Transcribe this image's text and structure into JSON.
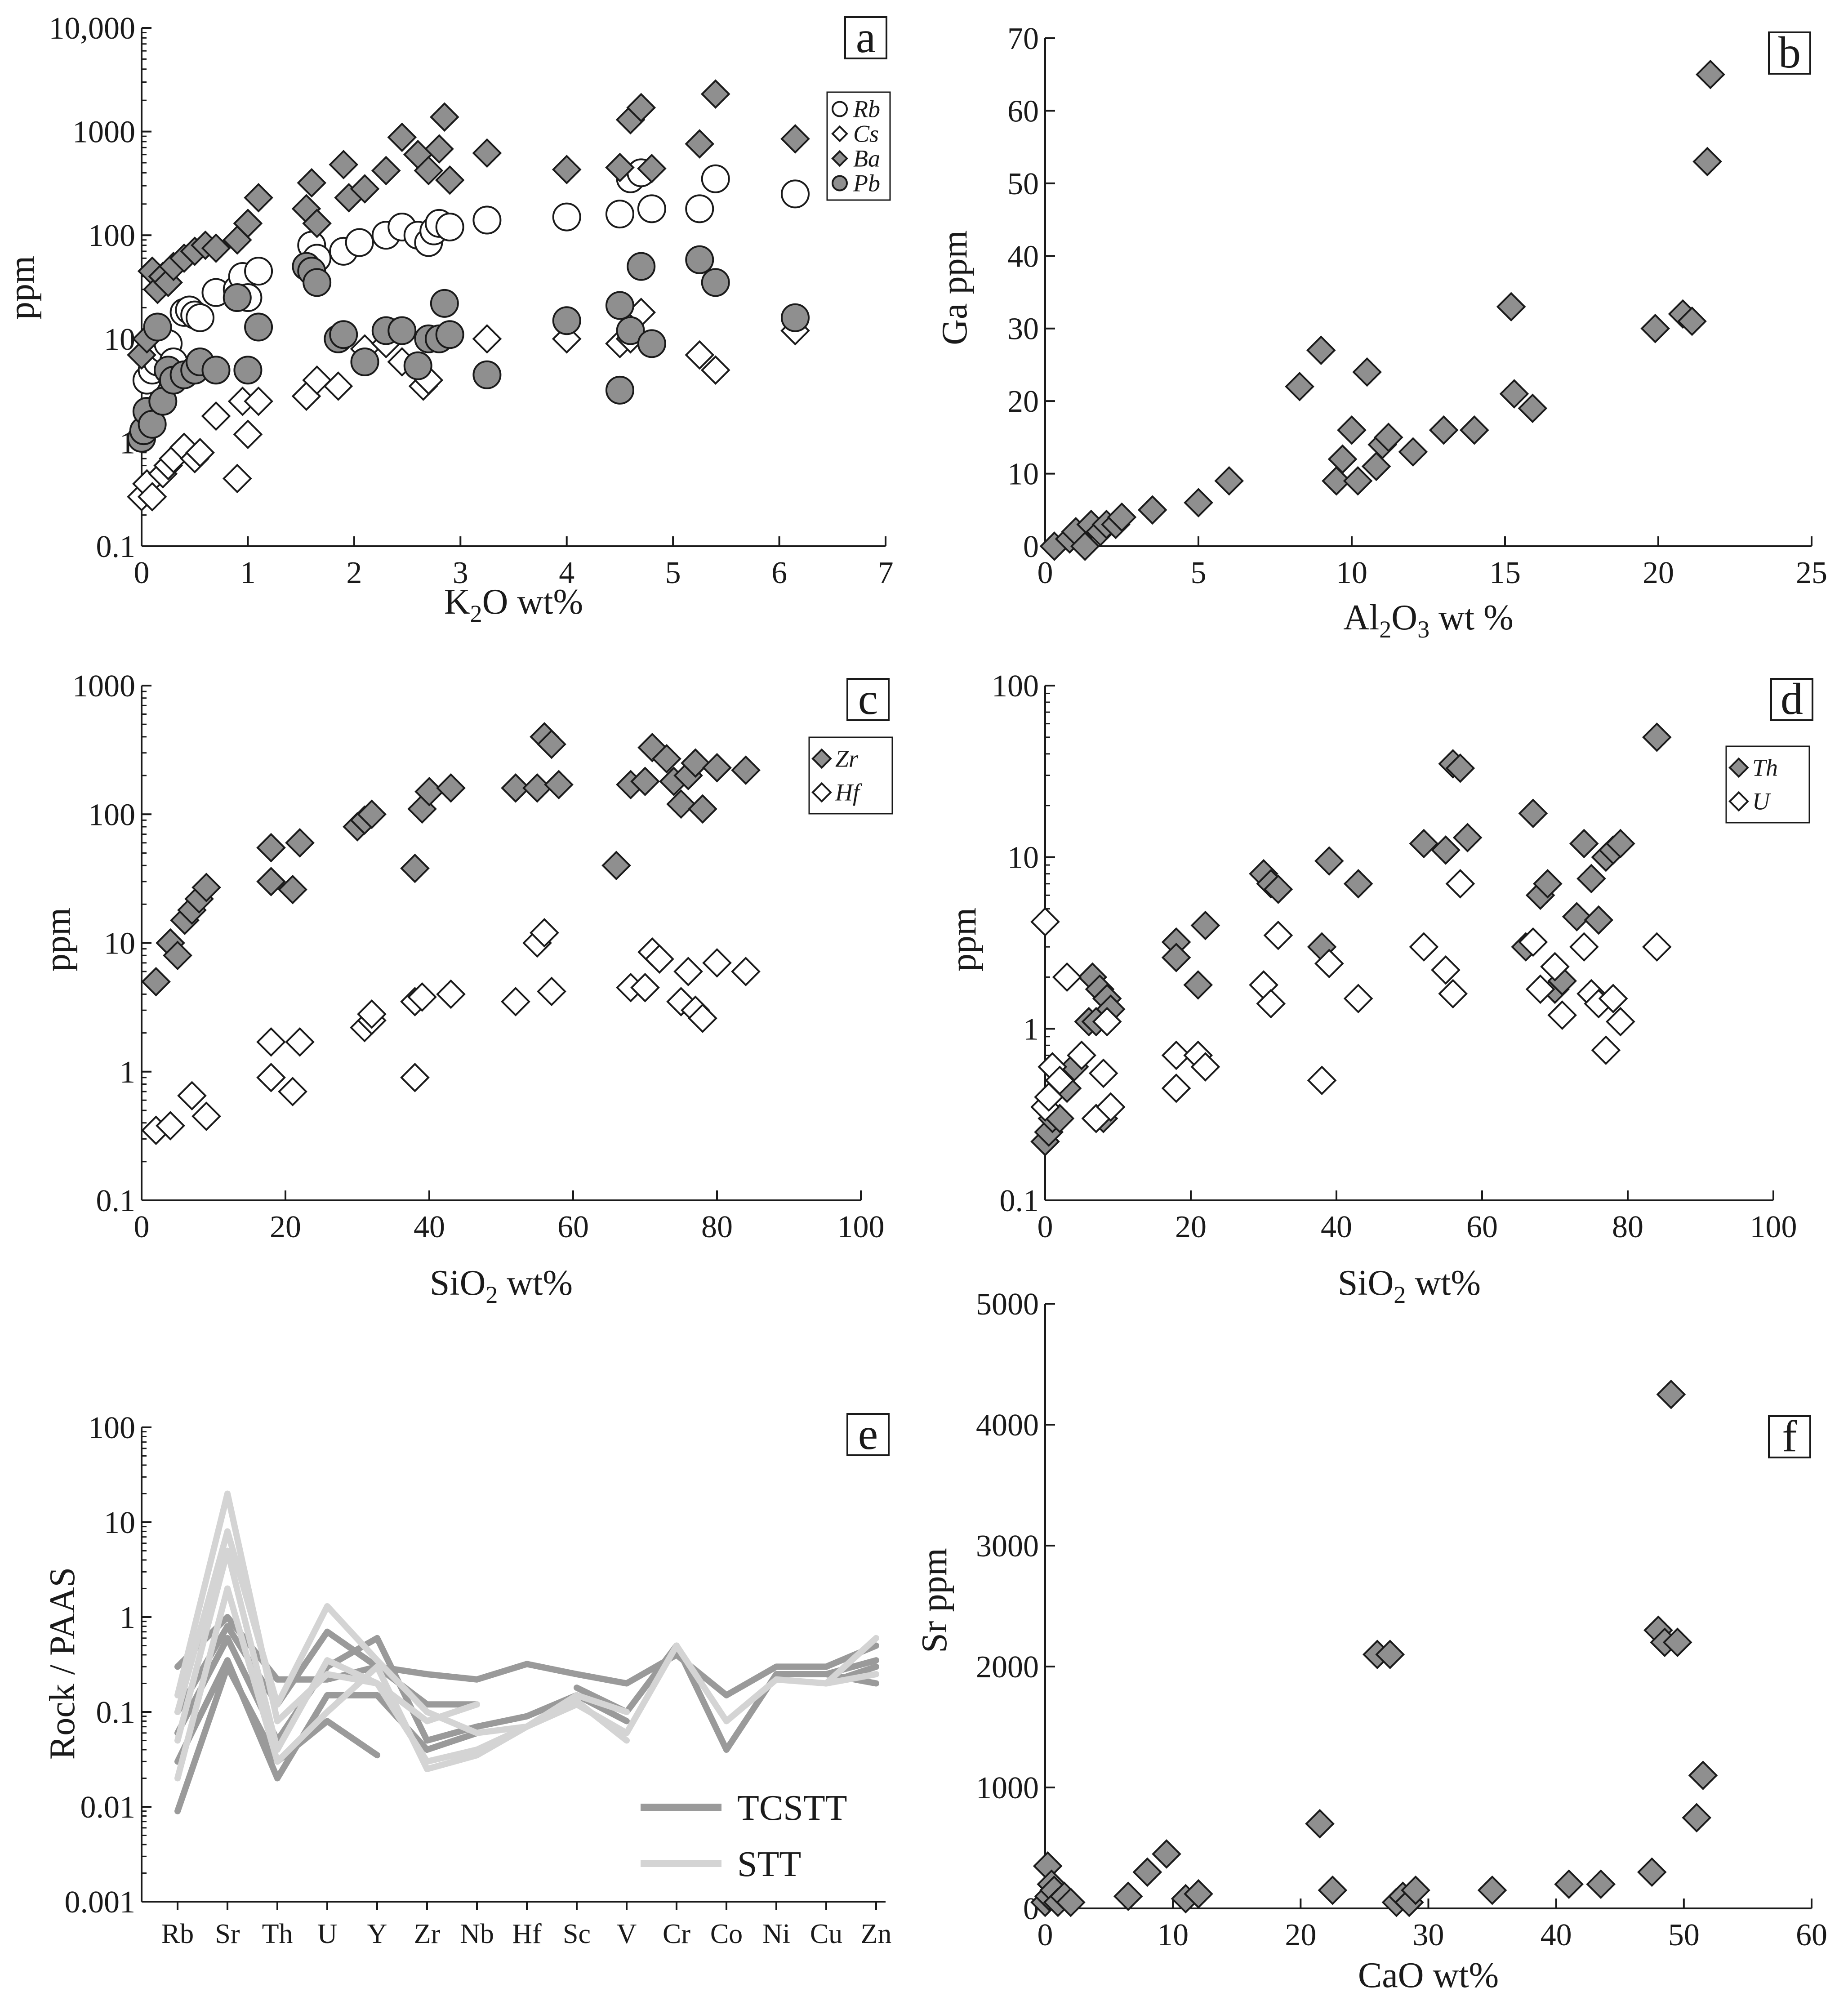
{
  "colors": {
    "gray_marker": "#8f8f8f",
    "dark_line": "#9a9a9a",
    "light_line": "#d4d4d4",
    "axis": "#1a1a1a"
  },
  "chart_data": [
    {
      "id": "a",
      "panel_label": "a",
      "type": "scatter",
      "yscale": "log",
      "xlabel": "K",
      "xlabel_sub": "2",
      "xlabel_tail": "O wt%",
      "ylabel": "ppm",
      "xlim": [
        0,
        7
      ],
      "ylim": [
        0.1,
        10000
      ],
      "xticks": [
        "0",
        "1",
        "2",
        "3",
        "4",
        "5",
        "6",
        "7"
      ],
      "yticks": [
        "0.1",
        "1",
        "10",
        "100",
        "1000",
        "10,000"
      ],
      "series": [
        {
          "name": "Rb",
          "marker": "circle-open",
          "x": [
            0.05,
            0.1,
            0.15,
            0.2,
            0.25,
            0.3,
            0.4,
            0.45,
            0.5,
            0.55,
            0.7,
            0.9,
            0.95,
            1.0,
            1.1,
            1.6,
            1.65,
            1.9,
            2.05,
            2.3,
            2.45,
            2.6,
            2.7,
            2.75,
            2.8,
            2.9,
            3.25,
            4.0,
            4.5,
            4.6,
            4.7,
            4.8,
            5.25,
            5.4,
            6.15
          ],
          "y": [
            4,
            5,
            6,
            8,
            9,
            6,
            18,
            19,
            17,
            16,
            28,
            30,
            40,
            25,
            45,
            80,
            60,
            70,
            85,
            100,
            120,
            100,
            85,
            110,
            130,
            120,
            140,
            150,
            160,
            350,
            400,
            180,
            180,
            350,
            250
          ]
        },
        {
          "name": "Cs",
          "marker": "diamond-open",
          "x": [
            0.0,
            0.05,
            0.1,
            0.2,
            0.25,
            0.3,
            0.4,
            0.5,
            0.55,
            0.7,
            0.9,
            0.95,
            1.0,
            1.1,
            1.55,
            1.65,
            1.85,
            2.1,
            2.3,
            2.45,
            2.65,
            2.7,
            3.25,
            4.0,
            4.5,
            4.6,
            4.7,
            5.25,
            5.4,
            6.15
          ],
          "y": [
            0.3,
            0.4,
            0.3,
            0.5,
            0.6,
            0.7,
            0.9,
            0.7,
            0.8,
            1.8,
            0.45,
            2.5,
            1.2,
            2.5,
            2.8,
            4,
            3.5,
            8,
            9,
            6,
            3.5,
            4,
            10,
            10,
            9,
            10,
            18,
            7,
            5,
            12
          ]
        },
        {
          "name": "Ba",
          "marker": "diamond-filled",
          "x": [
            0.0,
            0.05,
            0.1,
            0.15,
            0.2,
            0.25,
            0.3,
            0.4,
            0.5,
            0.6,
            0.7,
            0.9,
            1.0,
            1.1,
            1.55,
            1.6,
            1.65,
            1.9,
            1.95,
            2.1,
            2.3,
            2.45,
            2.6,
            2.7,
            2.8,
            2.85,
            2.9,
            3.25,
            4.0,
            4.5,
            4.6,
            4.7,
            4.8,
            5.25,
            5.4,
            6.15
          ],
          "y": [
            7,
            10,
            45,
            30,
            40,
            35,
            50,
            60,
            70,
            80,
            75,
            90,
            130,
            230,
            180,
            320,
            130,
            480,
            230,
            280,
            420,
            880,
            600,
            420,
            680,
            1380,
            340,
            620,
            430,
            450,
            1300,
            1700,
            440,
            760,
            2300,
            850
          ]
        },
        {
          "name": "Pb",
          "marker": "circle-filled",
          "x": [
            0.0,
            0.02,
            0.05,
            0.1,
            0.15,
            0.2,
            0.25,
            0.3,
            0.4,
            0.5,
            0.55,
            0.7,
            0.9,
            1.0,
            1.1,
            1.55,
            1.6,
            1.65,
            1.85,
            1.9,
            2.1,
            2.3,
            2.45,
            2.6,
            2.7,
            2.8,
            2.85,
            2.9,
            3.25,
            4.0,
            4.5,
            4.5,
            4.6,
            4.7,
            4.8,
            5.25,
            5.4,
            6.15
          ],
          "y": [
            1.1,
            1.3,
            2,
            1.5,
            13,
            2.5,
            5,
            4,
            4.5,
            5,
            6,
            5,
            25,
            5,
            13,
            50,
            45,
            35,
            10,
            11,
            6,
            12,
            12,
            5.5,
            10,
            10,
            22,
            11,
            4.5,
            15,
            21,
            3.2,
            12,
            50,
            9,
            58,
            35,
            16
          ]
        }
      ]
    },
    {
      "id": "b",
      "panel_label": "b",
      "type": "scatter",
      "yscale": "linear",
      "xlabel": "Al",
      "xlabel_sub": "2",
      "xlabel_mid": "O",
      "xlabel_sub2": "3",
      "xlabel_tail": " wt %",
      "ylabel": "Ga ppm",
      "xlim": [
        0,
        25
      ],
      "ylim": [
        0,
        70
      ],
      "xticks": [
        "0",
        "5",
        "10",
        "15",
        "20",
        "25"
      ],
      "yticks": [
        "0",
        "10",
        "20",
        "30",
        "40",
        "50",
        "60",
        "70"
      ],
      "series": [
        {
          "name": "Ga",
          "marker": "diamond-filled",
          "x": [
            0.3,
            0.8,
            1.0,
            1.3,
            1.5,
            1.8,
            2.0,
            2.3,
            2.5,
            3.5,
            5,
            6,
            8.3,
            9,
            9.5,
            9.7,
            10,
            10.2,
            10.5,
            10.8,
            11,
            11.2,
            12,
            13,
            14,
            15.2,
            15.3,
            15.9,
            19.9,
            20.8,
            21.1,
            21.6,
            21.7
          ],
          "y": [
            0,
            1,
            2,
            0,
            3,
            2,
            3,
            3,
            4,
            5,
            6,
            9,
            22,
            27,
            9,
            12,
            16,
            9,
            24,
            11,
            14,
            15,
            13,
            16,
            16,
            33,
            21,
            19,
            30,
            32,
            31,
            53,
            65
          ]
        }
      ]
    },
    {
      "id": "c",
      "panel_label": "c",
      "type": "scatter",
      "yscale": "log",
      "xlabel": "SiO",
      "xlabel_sub": "2",
      "xlabel_tail": " wt%",
      "ylabel": "ppm",
      "xlim": [
        0,
        100
      ],
      "ylim": [
        0.1,
        1000
      ],
      "xticks": [
        "0",
        "20",
        "40",
        "60",
        "80",
        "100"
      ],
      "yticks": [
        "0.1",
        "1",
        "10",
        "100",
        "1000"
      ],
      "series": [
        {
          "name": "Zr",
          "marker": "diamond-filled",
          "x": [
            2,
            4,
            5,
            6,
            7,
            8,
            9,
            18,
            18,
            21,
            22,
            30,
            31,
            32,
            38,
            39,
            40,
            43,
            52,
            55,
            56,
            57,
            58,
            66,
            68,
            70,
            71,
            73,
            74,
            75,
            76,
            77,
            78,
            80,
            84
          ],
          "y": [
            5,
            10,
            8,
            15,
            18,
            22,
            27,
            55,
            30,
            26,
            60,
            80,
            90,
            100,
            38,
            110,
            150,
            160,
            160,
            160,
            400,
            350,
            170,
            40,
            170,
            180,
            330,
            270,
            180,
            120,
            200,
            250,
            110,
            230,
            220
          ]
        },
        {
          "name": "Hf",
          "marker": "diamond-open",
          "x": [
            2,
            4,
            7,
            9,
            18,
            18,
            21,
            22,
            31,
            32,
            32,
            38,
            38,
            39,
            43,
            52,
            55,
            56,
            57,
            68,
            70,
            71,
            72,
            75,
            76,
            77,
            78,
            80,
            84
          ],
          "y": [
            0.35,
            0.38,
            0.65,
            0.45,
            1.7,
            0.9,
            0.7,
            1.7,
            2.2,
            2.5,
            2.8,
            0.9,
            3.5,
            3.8,
            4.0,
            3.5,
            10,
            12,
            4.2,
            4.5,
            4.5,
            8.5,
            7.5,
            3.5,
            6.0,
            3.0,
            2.6,
            7.0,
            6.0
          ]
        }
      ]
    },
    {
      "id": "d",
      "panel_label": "d",
      "type": "scatter",
      "yscale": "log",
      "xlabel": "SiO",
      "xlabel_sub": "2",
      "xlabel_tail": " wt%",
      "ylabel": "ppm",
      "xlim": [
        0,
        100
      ],
      "ylim": [
        0.1,
        100
      ],
      "xticks": [
        "0",
        "20",
        "40",
        "60",
        "80",
        "100"
      ],
      "yticks": [
        "0.1",
        "1",
        "10",
        "100"
      ],
      "series": [
        {
          "name": "Th",
          "marker": "diamond-filled",
          "x": [
            0,
            0.5,
            1,
            2,
            3,
            4,
            5,
            6,
            6.5,
            7,
            7.5,
            8,
            8.5,
            9,
            18,
            18,
            21,
            22,
            30,
            31,
            32,
            38,
            39,
            43,
            52,
            55,
            56,
            57,
            58,
            66,
            67,
            68,
            69,
            70,
            71,
            73,
            74,
            75,
            76,
            77,
            78,
            79,
            84
          ],
          "y": [
            0.22,
            0.25,
            0.3,
            0.3,
            0.45,
            0.6,
            0.7,
            1.1,
            2.0,
            1.1,
            1.7,
            0.3,
            1.5,
            1.3,
            3.2,
            2.6,
            1.8,
            4.0,
            8,
            7,
            6.5,
            3.0,
            9.5,
            7,
            12,
            11,
            35,
            33,
            13,
            3.0,
            18,
            6,
            7,
            1.7,
            1.9,
            4.5,
            12,
            7.5,
            4.3,
            10,
            11,
            12,
            50
          ]
        },
        {
          "name": "U",
          "marker": "diamond-open",
          "x": [
            0,
            0,
            0.5,
            1,
            2,
            3,
            5,
            7,
            8,
            8.5,
            9,
            18,
            18,
            21,
            22,
            30,
            31,
            32,
            38,
            39,
            43,
            52,
            55,
            56,
            57,
            67,
            68,
            70,
            71,
            74,
            75,
            76,
            77,
            78,
            79,
            84
          ],
          "y": [
            4.2,
            0.35,
            0.4,
            0.6,
            0.5,
            2.0,
            0.7,
            0.3,
            0.55,
            1.1,
            0.35,
            0.7,
            0.45,
            0.7,
            0.6,
            1.8,
            1.4,
            3.5,
            0.5,
            2.4,
            1.5,
            3.0,
            2.2,
            1.6,
            7,
            3.2,
            1.7,
            2.3,
            1.2,
            3.0,
            1.6,
            1.4,
            0.75,
            1.5,
            1.1,
            3.0
          ]
        }
      ]
    },
    {
      "id": "e",
      "panel_label": "e",
      "type": "line",
      "yscale": "log",
      "ylabel": "Rock / PAAS",
      "xlabel": "",
      "categories": [
        "Rb",
        "Sr",
        "Th",
        "U",
        "Y",
        "Zr",
        "Nb",
        "Hf",
        "Sc",
        "V",
        "Cr",
        "Co",
        "Ni",
        "Cu",
        "Zn"
      ],
      "ylim": [
        0.001,
        100
      ],
      "yticks": [
        "0.001",
        "0.01",
        "0.1",
        "1",
        "10",
        "100"
      ],
      "legend": [
        {
          "name": "TCSTT",
          "color": "dark"
        },
        {
          "name": "STT",
          "color": "light"
        }
      ],
      "series": [
        {
          "group": "TCSTT",
          "values": [
            0.3,
            1.0,
            0.22,
            0.22,
            0.3,
            0.25,
            0.22,
            0.32,
            0.25,
            0.2,
            0.4,
            0.15,
            0.3,
            0.3,
            0.5
          ]
        },
        {
          "group": "TCSTT",
          "values": [
            0.1,
            0.8,
            0.12,
            0.7,
            0.3,
            0.12,
            0.12,
            null,
            0.18,
            0.1,
            0.5,
            0.04,
            0.25,
            0.25,
            0.35
          ]
        },
        {
          "group": "TCSTT",
          "values": [
            0.06,
            0.6,
            0.05,
            0.3,
            0.6,
            0.05,
            0.07,
            0.09,
            0.15,
            0.08,
            null,
            null,
            null,
            0.2,
            0.3
          ]
        },
        {
          "group": "TCSTT",
          "values": [
            0.03,
            0.35,
            0.02,
            0.15,
            0.15,
            0.04,
            0.06,
            null,
            null,
            null,
            null,
            null,
            null,
            0.25,
            0.2
          ]
        },
        {
          "group": "TCSTT",
          "values": [
            0.009,
            0.3,
            0.03,
            0.08,
            0.035,
            null,
            null,
            null,
            null,
            null,
            null,
            null,
            null,
            null,
            null
          ]
        },
        {
          "group": "STT",
          "values": [
            0.15,
            20,
            0.08,
            0.25,
            0.2,
            0.08,
            0.12,
            null,
            null,
            null,
            null,
            null,
            null,
            null,
            null
          ]
        },
        {
          "group": "STT",
          "values": [
            0.1,
            8,
            0.12,
            1.3,
            0.35,
            0.1,
            0.06,
            0.07,
            0.12,
            0.06,
            0.5,
            0.08,
            0.22,
            0.2,
            0.6
          ]
        },
        {
          "group": "STT",
          "values": [
            0.05,
            5,
            0.04,
            0.35,
            0.2,
            0.03,
            0.04,
            0.07,
            0.15,
            0.1,
            null,
            null,
            null,
            null,
            null
          ]
        },
        {
          "group": "STT",
          "values": [
            0.02,
            2,
            0.03,
            0.1,
            0.3,
            0.025,
            0.035,
            0.07,
            0.13,
            0.05,
            null,
            null,
            null,
            0.2,
            0.25
          ]
        }
      ]
    },
    {
      "id": "f",
      "panel_label": "f",
      "type": "scatter",
      "yscale": "linear",
      "xlabel": "CaO wt%",
      "ylabel": "Sr ppm",
      "xlim": [
        0,
        60
      ],
      "ylim": [
        0,
        5000
      ],
      "xticks": [
        "0",
        "10",
        "20",
        "30",
        "40",
        "50",
        "60"
      ],
      "yticks": [
        "0",
        "1000",
        "2000",
        "3000",
        "4000",
        "5000"
      ],
      "series": [
        {
          "name": "Sr",
          "marker": "diamond-filled",
          "x": [
            0,
            0.2,
            0.3,
            0.5,
            0.7,
            1,
            1.5,
            2,
            6.5,
            8,
            9.5,
            11,
            12,
            21.5,
            22.5,
            26,
            27,
            27.5,
            28,
            28.5,
            29,
            35,
            41,
            43.5,
            47.5,
            48,
            48.5,
            49,
            49.5,
            51,
            51.5
          ],
          "y": [
            50,
            350,
            100,
            200,
            150,
            50,
            100,
            50,
            100,
            300,
            450,
            80,
            120,
            700,
            150,
            2100,
            2100,
            50,
            100,
            50,
            150,
            150,
            200,
            200,
            300,
            2300,
            2200,
            4250,
            2200,
            750,
            1100
          ]
        }
      ]
    }
  ]
}
